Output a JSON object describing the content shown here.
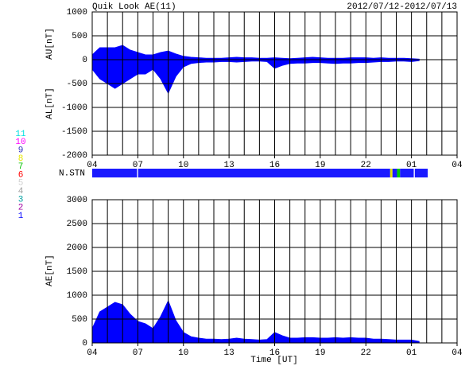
{
  "chart_data": [
    {
      "type": "area",
      "title": "Quik Look AE(11)",
      "date_range": "2012/07/12-2012/07/13",
      "x": [
        0,
        0.5,
        1,
        1.5,
        2,
        2.5,
        3,
        3.5,
        4,
        4.5,
        5,
        5.5,
        6,
        6.5,
        7,
        7.5,
        8,
        8.5,
        9,
        9.5,
        10,
        10.5,
        11,
        11.5,
        12,
        12.5,
        13,
        13.5,
        14,
        14.5,
        15,
        15.5,
        16,
        16.5,
        17,
        17.5,
        18,
        18.5,
        19,
        19.5,
        20,
        20.5,
        21,
        21.5
      ],
      "series": [
        {
          "name": "AU[nT]",
          "color": "#0000ff",
          "values": [
            100,
            250,
            250,
            250,
            300,
            200,
            150,
            100,
            100,
            150,
            180,
            120,
            70,
            50,
            40,
            30,
            30,
            30,
            40,
            50,
            40,
            40,
            30,
            30,
            40,
            30,
            20,
            30,
            40,
            50,
            40,
            30,
            30,
            30,
            40,
            40,
            40,
            30,
            40,
            30,
            30,
            30,
            20,
            10
          ]
        },
        {
          "name": "AL[nT]",
          "color": "#0000ff",
          "values": [
            -200,
            -400,
            -500,
            -600,
            -500,
            -400,
            -300,
            -300,
            -200,
            -400,
            -700,
            -350,
            -150,
            -80,
            -60,
            -50,
            -50,
            -40,
            -40,
            -50,
            -40,
            -30,
            -30,
            -40,
            -180,
            -120,
            -80,
            -70,
            -70,
            -60,
            -60,
            -70,
            -80,
            -70,
            -70,
            -60,
            -60,
            -50,
            -40,
            -40,
            -30,
            -30,
            -40,
            -20
          ]
        }
      ],
      "xlim": [
        0,
        24
      ],
      "xticks": [
        {
          "value": 0,
          "label": "04"
        },
        {
          "value": 3,
          "label": "07"
        },
        {
          "value": 6,
          "label": "10"
        },
        {
          "value": 9,
          "label": "13"
        },
        {
          "value": 12,
          "label": "16"
        },
        {
          "value": 15,
          "label": "19"
        },
        {
          "value": 18,
          "label": "22"
        },
        {
          "value": 21,
          "label": "01"
        },
        {
          "value": 24,
          "label": "04"
        }
      ],
      "ylim": [
        -2000,
        1000
      ],
      "yticks": [
        -2000,
        -1500,
        -1000,
        -500,
        0,
        500,
        1000
      ]
    },
    {
      "type": "band",
      "label": "N.STN",
      "segments": [
        {
          "start": 0,
          "end": 2.95,
          "color": "#1a1aff"
        },
        {
          "start": 3.02,
          "end": 19.6,
          "color": "#1a1aff"
        },
        {
          "start": 19.6,
          "end": 19.75,
          "color": "#e6e600"
        },
        {
          "start": 19.75,
          "end": 20.05,
          "color": "#1a1aff"
        },
        {
          "start": 20.05,
          "end": 20.25,
          "color": "#00cc00"
        },
        {
          "start": 20.25,
          "end": 21.15,
          "color": "#1a1aff"
        },
        {
          "start": 21.22,
          "end": 22.07,
          "color": "#1a1aff"
        }
      ],
      "legend": [
        {
          "name": "11",
          "color": "#00e0e0"
        },
        {
          "name": "10",
          "color": "#ff00ff"
        },
        {
          "name": "9",
          "color": "#3030c0"
        },
        {
          "name": "8",
          "color": "#e6e600"
        },
        {
          "name": "7",
          "color": "#00c000"
        },
        {
          "name": "6",
          "color": "#ff0000"
        },
        {
          "name": "5",
          "color": "#d0d0d0"
        },
        {
          "name": "4",
          "color": "#a0a0a0"
        },
        {
          "name": "3",
          "color": "#00a0a0"
        },
        {
          "name": "2",
          "color": "#a000a0"
        },
        {
          "name": "1",
          "color": "#0000ff"
        }
      ]
    },
    {
      "type": "area",
      "x_label": "Time [UT]",
      "x": [
        0,
        0.5,
        1,
        1.5,
        2,
        2.5,
        3,
        3.5,
        4,
        4.5,
        5,
        5.5,
        6,
        6.5,
        7,
        7.5,
        8,
        8.5,
        9,
        9.5,
        10,
        10.5,
        11,
        11.5,
        12,
        12.5,
        13,
        13.5,
        14,
        14.5,
        15,
        15.5,
        16,
        16.5,
        17,
        17.5,
        18,
        18.5,
        19,
        19.5,
        20,
        20.5,
        21,
        21.5
      ],
      "series": [
        {
          "name": "AE[nT]",
          "color": "#0000ff",
          "values": [
            300,
            650,
            750,
            850,
            800,
            600,
            450,
            400,
            300,
            550,
            880,
            470,
            220,
            130,
            100,
            80,
            80,
            70,
            80,
            100,
            80,
            70,
            60,
            70,
            220,
            150,
            100,
            100,
            110,
            110,
            100,
            100,
            110,
            100,
            110,
            100,
            100,
            80,
            80,
            70,
            60,
            60,
            60,
            30
          ]
        }
      ],
      "xlim": [
        0,
        24
      ],
      "xticks": [
        {
          "value": 0,
          "label": "04"
        },
        {
          "value": 3,
          "label": "07"
        },
        {
          "value": 6,
          "label": "10"
        },
        {
          "value": 9,
          "label": "13"
        },
        {
          "value": 12,
          "label": "16"
        },
        {
          "value": 15,
          "label": "19"
        },
        {
          "value": 18,
          "label": "22"
        },
        {
          "value": 21,
          "label": "01"
        },
        {
          "value": 24,
          "label": "04"
        }
      ],
      "ylim": [
        0,
        3000
      ],
      "yticks": [
        0,
        500,
        1000,
        1500,
        2000,
        2500,
        3000
      ]
    }
  ]
}
